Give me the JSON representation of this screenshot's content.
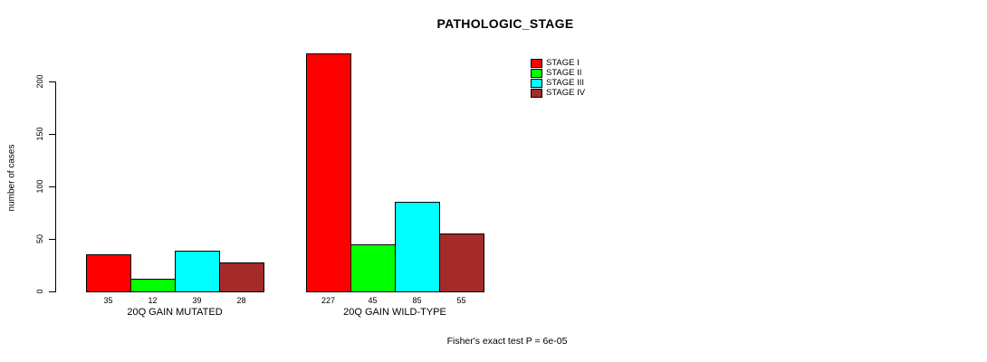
{
  "chart_data": {
    "type": "bar",
    "title": "PATHOLOGIC_STAGE",
    "ylabel": "number of cases",
    "xlabel": "",
    "yticks": [
      0,
      50,
      100,
      150,
      200
    ],
    "ylim": [
      0,
      232
    ],
    "grid": false,
    "legend_position": "top-right",
    "categories": [
      "20Q GAIN MUTATED",
      "20Q GAIN WILD-TYPE"
    ],
    "series": [
      {
        "name": "STAGE I",
        "color": "#FF0000",
        "values": [
          35,
          227
        ]
      },
      {
        "name": "STAGE II",
        "color": "#00FF00",
        "values": [
          12,
          45
        ]
      },
      {
        "name": "STAGE III",
        "color": "#00FFFF",
        "values": [
          39,
          85
        ]
      },
      {
        "name": "STAGE IV",
        "color": "#A52A2A",
        "values": [
          28,
          55
        ]
      }
    ],
    "footnote": "Fisher's exact test P = 6e-05",
    "colors": {
      "bar_border": "#000000",
      "axis": "#000000",
      "text": "#000000",
      "background": "#FFFFFF"
    }
  }
}
